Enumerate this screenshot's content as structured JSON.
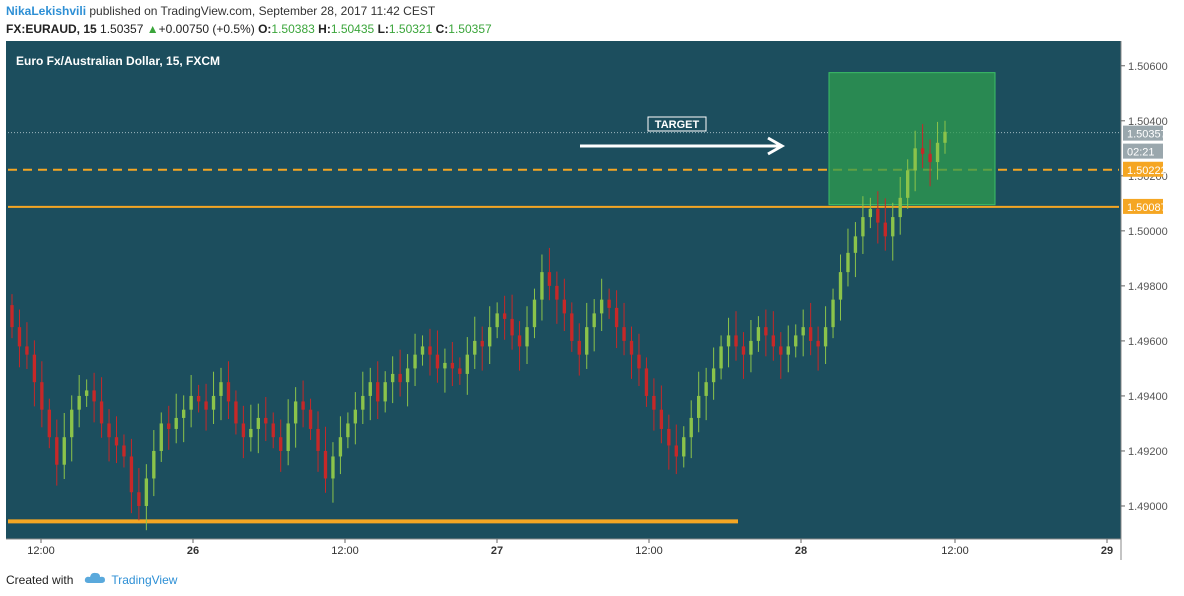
{
  "header": {
    "author": "NikaLekishvili",
    "published_text": " published on TradingView.com, September 28, 2017 11:42 CEST",
    "symbol": "FX:EURAUD, 15",
    "last": "1.50357",
    "change_arrow": "▲",
    "change": "+0.00750 (+0.5%)",
    "o_label": "O:",
    "o": "1.50383",
    "h_label": "H:",
    "h": "1.50435",
    "l_label": "L:",
    "l": "1.50321",
    "c_label": "C:",
    "c": "1.50357"
  },
  "footer": {
    "created_with": "Created with",
    "brand": "TradingView",
    "logo_icon": "tradingview-cloud-icon"
  },
  "colors": {
    "background": "#1c4e5e",
    "up_candle": "#8bc34a",
    "down_candle": "#c62828",
    "level_line": "#f5a623",
    "target_box": "#2e9e4f",
    "axis_bg": "#ffffff"
  },
  "chart_data": {
    "type": "candlestick",
    "title": "Euro Fx/Australian Dollar, 15, FXCM",
    "xlabel": "",
    "ylabel": "",
    "x_ticks": [
      "12:00",
      "26",
      "12:00",
      "27",
      "12:00",
      "28",
      "12:00",
      "29"
    ],
    "y_ticks": [
      "1.50600",
      "1.50400",
      "1.50200",
      "1.50000",
      "1.49800",
      "1.49600",
      "1.49400",
      "1.49200",
      "1.49000"
    ],
    "ylim": [
      1.4888,
      1.5069
    ],
    "grid": false,
    "series": [
      {
        "name": "",
        "values": [
          1.4965,
          1.4958,
          1.4955,
          1.4945,
          1.4935,
          1.4925,
          1.4915,
          1.4925,
          1.4935,
          1.494,
          1.4942,
          1.4938,
          1.493,
          1.4925,
          1.4922,
          1.4918,
          1.4905,
          1.49,
          1.491,
          1.492,
          1.493,
          1.4928,
          1.4932,
          1.4935,
          1.494,
          1.4938,
          1.4935,
          1.494,
          1.4945,
          1.4938,
          1.493,
          1.4925,
          1.4928,
          1.4932,
          1.493,
          1.4925,
          1.492,
          1.493,
          1.4938,
          1.4935,
          1.4928,
          1.492,
          1.491,
          1.4918,
          1.4925,
          1.493,
          1.4935,
          1.494,
          1.4945,
          1.4938,
          1.4945,
          1.4948,
          1.4945,
          1.495,
          1.4955,
          1.4958,
          1.4955,
          1.495,
          1.4952,
          1.495,
          1.4948,
          1.4955,
          1.496,
          1.4958,
          1.4965,
          1.497,
          1.4968,
          1.4962,
          1.4958,
          1.4965,
          1.4975,
          1.4985,
          1.498,
          1.4975,
          1.497,
          1.496,
          1.4955,
          1.4965,
          1.497,
          1.4975,
          1.4972,
          1.4965,
          1.496,
          1.4955,
          1.495,
          1.494,
          1.4935,
          1.4928,
          1.4922,
          1.4918,
          1.4925,
          1.4932,
          1.494,
          1.4945,
          1.495,
          1.4958,
          1.4962,
          1.4958,
          1.4955,
          1.496,
          1.4965,
          1.4962,
          1.4958,
          1.4955,
          1.4958,
          1.4962,
          1.4965,
          1.496,
          1.4958,
          1.4965,
          1.4975,
          1.4985,
          1.4992,
          1.4998,
          1.5005,
          1.5008,
          1.5003,
          1.4998,
          1.5005,
          1.5012,
          1.5022,
          1.503,
          1.5028,
          1.5025,
          1.5032,
          1.5036
        ]
      }
    ],
    "price_labels": {
      "last": "1.50357",
      "countdown": "02:21",
      "dashed_level": "1.50222",
      "solid_level": "1.50087"
    },
    "levels": [
      {
        "price": 1.50222,
        "style": "dashed"
      },
      {
        "price": 1.50087,
        "style": "solid"
      },
      {
        "price": 1.48944,
        "style": "solid-thick"
      }
    ],
    "annotations": [
      {
        "text": "TARGET",
        "type": "label"
      },
      {
        "type": "arrow",
        "direction": "right"
      },
      {
        "type": "rectangle",
        "top": 1.50575,
        "bottom": 1.50095
      }
    ]
  }
}
